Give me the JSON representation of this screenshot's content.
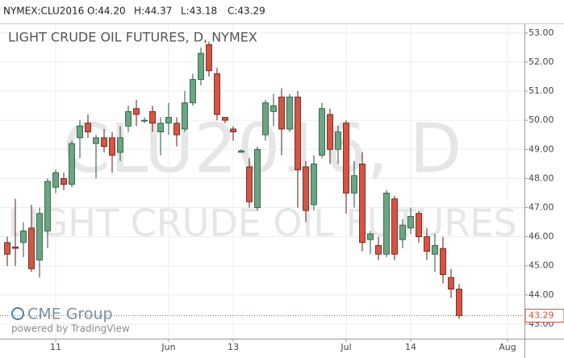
{
  "chart_data": {
    "type": "candlestick",
    "header": "NYMEX:CLU2016",
    "header_values": [
      "O:44.20",
      "H:44.37",
      "L:43.18",
      "C:43.29"
    ],
    "title": "LIGHT CRUDE OIL FUTURES, D, NYMEX",
    "watermark": [
      "CLU2016, D",
      "LIGHT CRUDE OIL FUTURES"
    ],
    "logo": "CME Group",
    "credit": "powered by TradingView",
    "categories": [
      null,
      null,
      null,
      null,
      null,
      null,
      "11",
      null,
      null,
      null,
      null,
      null,
      null,
      null,
      null,
      null,
      null,
      null,
      null,
      null,
      "Jun",
      null,
      null,
      null,
      null,
      null,
      null,
      null,
      "13",
      null,
      null,
      null,
      null,
      null,
      null,
      null,
      null,
      null,
      null,
      null,
      null,
      null,
      "Jul",
      null,
      null,
      null,
      null,
      null,
      null,
      null,
      "14",
      null,
      null,
      null,
      null,
      null,
      null,
      null,
      null,
      null,
      null,
      null,
      "Aug"
    ],
    "open": [
      45.8,
      45.65,
      45.8,
      46.3,
      45.2,
      46.2,
      47.7,
      48.0,
      47.8,
      49.4,
      49.9,
      49.2,
      49.4,
      49.4,
      48.9,
      49.8,
      50.4,
      50.0,
      50.3,
      49.6,
      49.9,
      49.9,
      49.7,
      50.6,
      51.4,
      52.6,
      51.6,
      50.1,
      49.7,
      48.9,
      48.4,
      47.0,
      49.5,
      50.3,
      50.8,
      49.7,
      50.8,
      48.4,
      47.1,
      48.8,
      50.2,
      49.0,
      49.9,
      47.5,
      48.5,
      45.9,
      45.7,
      45.4,
      47.3,
      45.9,
      46.3,
      46.8,
      46.0,
      45.4,
      45.6,
      44.6,
      44.2,
      null,
      null,
      null,
      null,
      null,
      null
    ],
    "high": [
      46.0,
      47.3,
      46.5,
      47.1,
      47.0,
      48.0,
      48.3,
      48.2,
      49.3,
      50.0,
      50.2,
      49.5,
      49.7,
      49.6,
      49.8,
      50.5,
      50.7,
      50.1,
      50.5,
      50.1,
      50.6,
      50.1,
      51.0,
      51.6,
      52.5,
      52.7,
      51.8,
      50.1,
      49.8,
      49.0,
      48.7,
      49.1,
      50.7,
      50.9,
      51.1,
      50.9,
      51.0,
      48.6,
      48.8,
      50.6,
      50.4,
      49.8,
      50.0,
      48.6,
      48.9,
      46.2,
      46.0,
      47.6,
      47.4,
      46.6,
      47.0,
      46.9,
      46.3,
      46.1,
      46.0,
      44.9,
      44.37,
      null,
      null,
      null,
      null,
      null,
      null
    ],
    "low": [
      45.0,
      45.0,
      45.3,
      44.8,
      44.6,
      45.6,
      47.5,
      47.6,
      47.7,
      48.7,
      49.4,
      48.0,
      48.9,
      48.2,
      48.6,
      49.6,
      49.8,
      49.9,
      49.6,
      48.8,
      49.5,
      49.1,
      49.6,
      50.5,
      51.2,
      51.5,
      50.0,
      49.9,
      49.3,
      48.9,
      47.0,
      46.9,
      49.3,
      49.8,
      48.8,
      49.6,
      47.0,
      46.5,
      46.9,
      48.7,
      48.5,
      48.5,
      46.8,
      47.0,
      45.5,
      45.4,
      45.2,
      45.3,
      45.2,
      45.6,
      46.1,
      45.8,
      45.2,
      44.8,
      44.4,
      43.9,
      43.18,
      null,
      null,
      null,
      null,
      null,
      null
    ],
    "close": [
      45.4,
      45.6,
      46.2,
      44.9,
      46.8,
      47.9,
      48.2,
      47.8,
      49.2,
      49.8,
      49.6,
      49.4,
      49.1,
      48.8,
      49.4,
      50.3,
      50.2,
      50.0,
      49.9,
      49.9,
      50.1,
      49.5,
      50.6,
      51.4,
      52.3,
      51.7,
      50.2,
      50.0,
      49.6,
      48.95,
      47.2,
      49.0,
      50.6,
      50.5,
      49.7,
      50.8,
      48.3,
      46.9,
      48.5,
      50.4,
      49.0,
      49.6,
      47.5,
      48.1,
      45.8,
      46.1,
      45.4,
      47.5,
      45.4,
      46.4,
      46.7,
      46.0,
      45.5,
      45.7,
      44.7,
      44.2,
      43.29,
      null,
      null,
      null,
      null,
      null,
      null
    ],
    "up_color": "#6ba583",
    "down_color": "#d75442",
    "ylim": [
      42.5,
      53.3
    ],
    "yticks": [
      {
        "value": 43,
        "label": "43.00"
      },
      {
        "value": 44,
        "label": "44.00"
      },
      {
        "value": 45,
        "label": "45.00"
      },
      {
        "value": 46,
        "label": "46.00"
      },
      {
        "value": 47,
        "label": "47.00"
      },
      {
        "value": 48,
        "label": "48.00"
      },
      {
        "value": 49,
        "label": "49.00"
      },
      {
        "value": 50,
        "label": "50.00"
      },
      {
        "value": 51,
        "label": "51.00"
      },
      {
        "value": 52,
        "label": "52.00"
      },
      {
        "value": 53,
        "label": "53.00"
      }
    ],
    "last_price": 43.29,
    "grid": true
  }
}
